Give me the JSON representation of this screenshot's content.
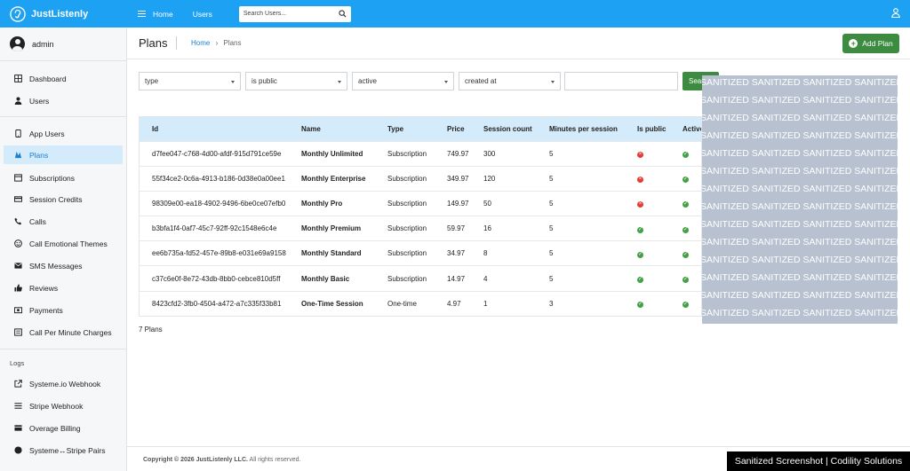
{
  "app": {
    "brand": "JustListenly"
  },
  "topnav": {
    "home": "Home",
    "users": "Users",
    "search_placeholder": "Search Users..."
  },
  "sidebar": {
    "user": "admin",
    "items": [
      {
        "label": "Dashboard",
        "icon": "dashboard-icon"
      },
      {
        "label": "Users",
        "icon": "user-icon"
      },
      {
        "label": "App Users",
        "icon": "mobile-icon"
      },
      {
        "label": "Plans",
        "icon": "plans-icon"
      },
      {
        "label": "Subscriptions",
        "icon": "subscriptions-icon"
      },
      {
        "label": "Session Credits",
        "icon": "credits-icon"
      },
      {
        "label": "Calls",
        "icon": "phone-icon"
      },
      {
        "label": "Call Emotional Themes",
        "icon": "emotion-icon"
      },
      {
        "label": "SMS Messages",
        "icon": "sms-icon"
      },
      {
        "label": "Reviews",
        "icon": "thumbs-up-icon"
      },
      {
        "label": "Payments",
        "icon": "payments-icon"
      },
      {
        "label": "Call Per Minute Charges",
        "icon": "charges-icon"
      }
    ],
    "logs_heading": "Logs",
    "log_items": [
      {
        "label": "Systeme.io Webhook",
        "icon": "external-link-icon"
      },
      {
        "label": "Stripe Webhook",
        "icon": "stripe-icon"
      },
      {
        "label": "Overage Billing",
        "icon": "billing-icon"
      },
      {
        "label": "Systeme↔Stripe Pairs",
        "icon": "pairs-icon"
      }
    ]
  },
  "page": {
    "title": "Plans",
    "breadcrumb_home": "Home",
    "breadcrumb_sep": "›",
    "breadcrumb_current": "Plans",
    "add_button": "Add Plan"
  },
  "filters": {
    "type": "type",
    "is_public": "is public",
    "active": "active",
    "created_at": "created at",
    "search_button": "Search"
  },
  "table": {
    "headers": [
      "Id",
      "Name",
      "Type",
      "Price",
      "Session count",
      "Minutes per session",
      "Is public",
      "Active"
    ],
    "rows": [
      {
        "id": "d7fee047-c768-4d00-afdf-915d791ce59e",
        "name": "Monthly Unlimited",
        "type": "Subscription",
        "price": "749.97",
        "sessions": "300",
        "minutes": "5",
        "is_public": "no"
      },
      {
        "id": "55f34ce2-0c6a-4913-b186-0d38e0a00ee1",
        "name": "Monthly Enterprise",
        "type": "Subscription",
        "price": "349.97",
        "sessions": "120",
        "minutes": "5",
        "is_public": "no"
      },
      {
        "id": "98309e00-ea18-4902-9496-6be0ce07efb0",
        "name": "Monthly Pro",
        "type": "Subscription",
        "price": "149.97",
        "sessions": "50",
        "minutes": "5",
        "is_public": "no"
      },
      {
        "id": "b3bfa1f4-0af7-45c7-92ff-92c1548e6c4e",
        "name": "Monthly Premium",
        "type": "Subscription",
        "price": "59.97",
        "sessions": "16",
        "minutes": "5",
        "is_public": "yes"
      },
      {
        "id": "ee6b735a-fd52-457e-89b8-e031e69a9158",
        "name": "Monthly Standard",
        "type": "Subscription",
        "price": "34.97",
        "sessions": "8",
        "minutes": "5",
        "is_public": "yes"
      },
      {
        "id": "c37c6e0f-8e72-43db-8bb0-cebce810d5ff",
        "name": "Monthly Basic",
        "type": "Subscription",
        "price": "14.97",
        "sessions": "4",
        "minutes": "5",
        "is_public": "yes"
      },
      {
        "id": "8423cfd2-3fb0-4504-a472-a7c335f33b81",
        "name": "One-Time Session",
        "type": "One-time",
        "price": "4.97",
        "sessions": "1",
        "minutes": "3",
        "is_public": "yes"
      }
    ],
    "count": "7 Plans"
  },
  "overlay": {
    "text": "SANITIZED SANITIZED SANITIZED SANITIZED SANITIZED"
  },
  "footer": {
    "copyright": "Copyright © 2026 JustListenly LLC.",
    "rights": "All rights reserved."
  },
  "badge": {
    "text": "Sanitized Screenshot | Codility Solutions"
  },
  "colors": {
    "topbar": "#1da1f2",
    "accent": "#3d8b40",
    "active_bg": "#d4ebfb",
    "danger": "#e53935",
    "success": "#43a047"
  }
}
